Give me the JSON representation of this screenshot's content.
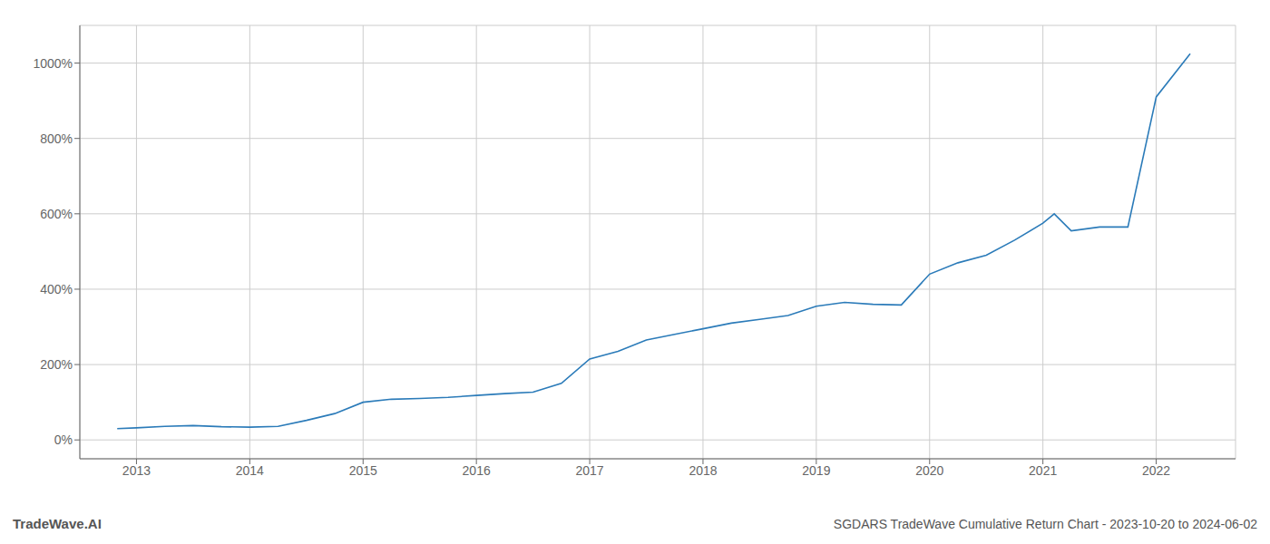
{
  "chart_data": {
    "type": "line",
    "title": "SGDARS TradeWave Cumulative Return Chart - 2023-10-20 to 2024-06-02",
    "annotations": [
      "TradeWave.AI"
    ],
    "x": [
      2012.83,
      2013.0,
      2013.25,
      2013.5,
      2013.75,
      2014.0,
      2014.25,
      2014.5,
      2014.75,
      2015.0,
      2015.25,
      2015.5,
      2015.75,
      2016.0,
      2016.25,
      2016.5,
      2016.75,
      2017.0,
      2017.25,
      2017.5,
      2017.75,
      2018.0,
      2018.25,
      2018.5,
      2018.75,
      2019.0,
      2019.25,
      2019.5,
      2019.75,
      2020.0,
      2020.25,
      2020.5,
      2020.75,
      2021.0,
      2021.1,
      2021.25,
      2021.5,
      2021.75,
      2022.0,
      2022.3
    ],
    "values": [
      30,
      32,
      36,
      38,
      35,
      34,
      36,
      52,
      70,
      100,
      108,
      110,
      113,
      118,
      123,
      127,
      150,
      215,
      235,
      265,
      280,
      295,
      310,
      320,
      330,
      355,
      365,
      360,
      358,
      440,
      470,
      490,
      530,
      575,
      600,
      555,
      565,
      565,
      910,
      1025
    ],
    "color": "#2b7bb9",
    "xlim": [
      2012.5,
      2022.7
    ],
    "ylim": [
      -50,
      1100
    ],
    "xticks": [
      2013,
      2014,
      2015,
      2016,
      2017,
      2018,
      2019,
      2020,
      2021,
      2022
    ],
    "yticks": [
      {
        "value": 0,
        "label": "0%"
      },
      {
        "value": 200,
        "label": "200%"
      },
      {
        "value": 400,
        "label": "400%"
      },
      {
        "value": 600,
        "label": "600%"
      },
      {
        "value": 800,
        "label": "800%"
      },
      {
        "value": 1000,
        "label": "1000%"
      }
    ],
    "grid": true
  }
}
